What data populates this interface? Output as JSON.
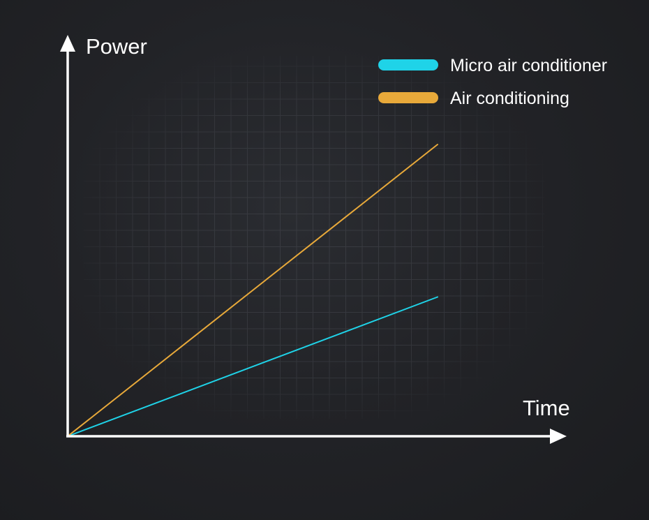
{
  "chart_data": {
    "type": "line",
    "title": "",
    "xlabel": "Time",
    "ylabel": "Power",
    "xlim": [
      0,
      10
    ],
    "ylim": [
      0,
      11.5
    ],
    "grid": true,
    "legend_position": "top-right",
    "series": [
      {
        "name": "Micro air conditioner",
        "color": "#1fd3e8",
        "x": [
          0,
          10
        ],
        "y": [
          0,
          4.2
        ]
      },
      {
        "name": "Air conditioning",
        "color": "#e8a93a",
        "x": [
          0,
          10
        ],
        "y": [
          0,
          8.8
        ]
      }
    ]
  },
  "colors": {
    "axis": "#ffffff",
    "grid": "#3a3c42",
    "background": "#222327"
  }
}
